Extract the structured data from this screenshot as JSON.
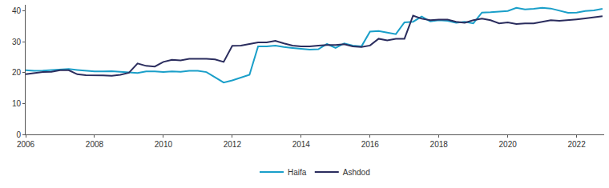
{
  "chart_data": {
    "type": "line",
    "x": [
      2006,
      2006.25,
      2006.5,
      2006.75,
      2007,
      2007.25,
      2007.5,
      2007.75,
      2008,
      2008.25,
      2008.5,
      2008.75,
      2009,
      2009.25,
      2009.5,
      2009.75,
      2010,
      2010.25,
      2010.5,
      2010.75,
      2011,
      2011.25,
      2011.5,
      2011.75,
      2012,
      2012.25,
      2012.5,
      2012.75,
      2013,
      2013.25,
      2013.5,
      2013.75,
      2014,
      2014.25,
      2014.5,
      2014.75,
      2015,
      2015.25,
      2015.5,
      2015.75,
      2016,
      2016.25,
      2016.5,
      2016.75,
      2017,
      2017.25,
      2017.5,
      2017.75,
      2018,
      2018.25,
      2018.5,
      2018.75,
      2019,
      2019.25,
      2019.5,
      2019.75,
      2020,
      2020.25,
      2020.5,
      2020.75,
      2021,
      2021.25,
      2021.5,
      2021.75,
      2022,
      2022.25,
      2022.5,
      2022.75
    ],
    "series": [
      {
        "name": "Haifa",
        "color": "#1a9fc9",
        "values": [
          20.8,
          20.6,
          20.7,
          20.9,
          21.0,
          21.2,
          20.9,
          20.6,
          20.4,
          20.4,
          20.5,
          20.3,
          20.1,
          19.9,
          20.4,
          20.4,
          20.2,
          20.4,
          20.3,
          20.6,
          20.6,
          20.2,
          18.5,
          16.8,
          17.5,
          18.5,
          19.3,
          28.5,
          28.5,
          28.8,
          28.3,
          28.0,
          27.8,
          27.5,
          27.6,
          29.3,
          28.0,
          29.5,
          28.8,
          28.5,
          33.3,
          33.5,
          33.0,
          32.5,
          36.3,
          36.5,
          38.2,
          36.6,
          37.0,
          36.8,
          36.2,
          36.5,
          36.0,
          39.5,
          39.6,
          39.8,
          40.0,
          41.0,
          40.5,
          40.7,
          41.0,
          40.8,
          40.0,
          39.4,
          39.5,
          40.0,
          40.2,
          40.7
        ]
      },
      {
        "name": "Ashdod",
        "color": "#2b2d5e",
        "values": [
          19.5,
          19.8,
          20.2,
          20.3,
          20.8,
          20.8,
          19.5,
          19.2,
          19.2,
          19.1,
          19.0,
          19.3,
          20.0,
          23.0,
          22.2,
          22.0,
          23.5,
          24.2,
          24.0,
          24.5,
          24.5,
          24.5,
          24.3,
          23.5,
          28.7,
          28.8,
          29.3,
          29.8,
          29.8,
          30.3,
          29.5,
          28.8,
          28.5,
          28.5,
          28.8,
          29.0,
          29.0,
          29.2,
          28.5,
          28.3,
          28.8,
          31.0,
          30.5,
          31.0,
          31.0,
          38.5,
          37.5,
          37.0,
          37.2,
          37.2,
          36.5,
          36.2,
          37.0,
          37.5,
          37.0,
          36.0,
          36.3,
          35.8,
          36.0,
          36.0,
          36.5,
          37.0,
          36.8,
          37.0,
          37.3,
          37.6,
          38.0,
          38.3
        ]
      }
    ],
    "xlim": [
      2006,
      2022.8
    ],
    "xticks": [
      2006,
      2008,
      2010,
      2012,
      2014,
      2016,
      2018,
      2020,
      2022
    ],
    "ylim": [
      0,
      42
    ],
    "yticks": [
      0,
      10,
      20,
      30,
      40
    ],
    "grid": false,
    "legend": "bottom"
  }
}
